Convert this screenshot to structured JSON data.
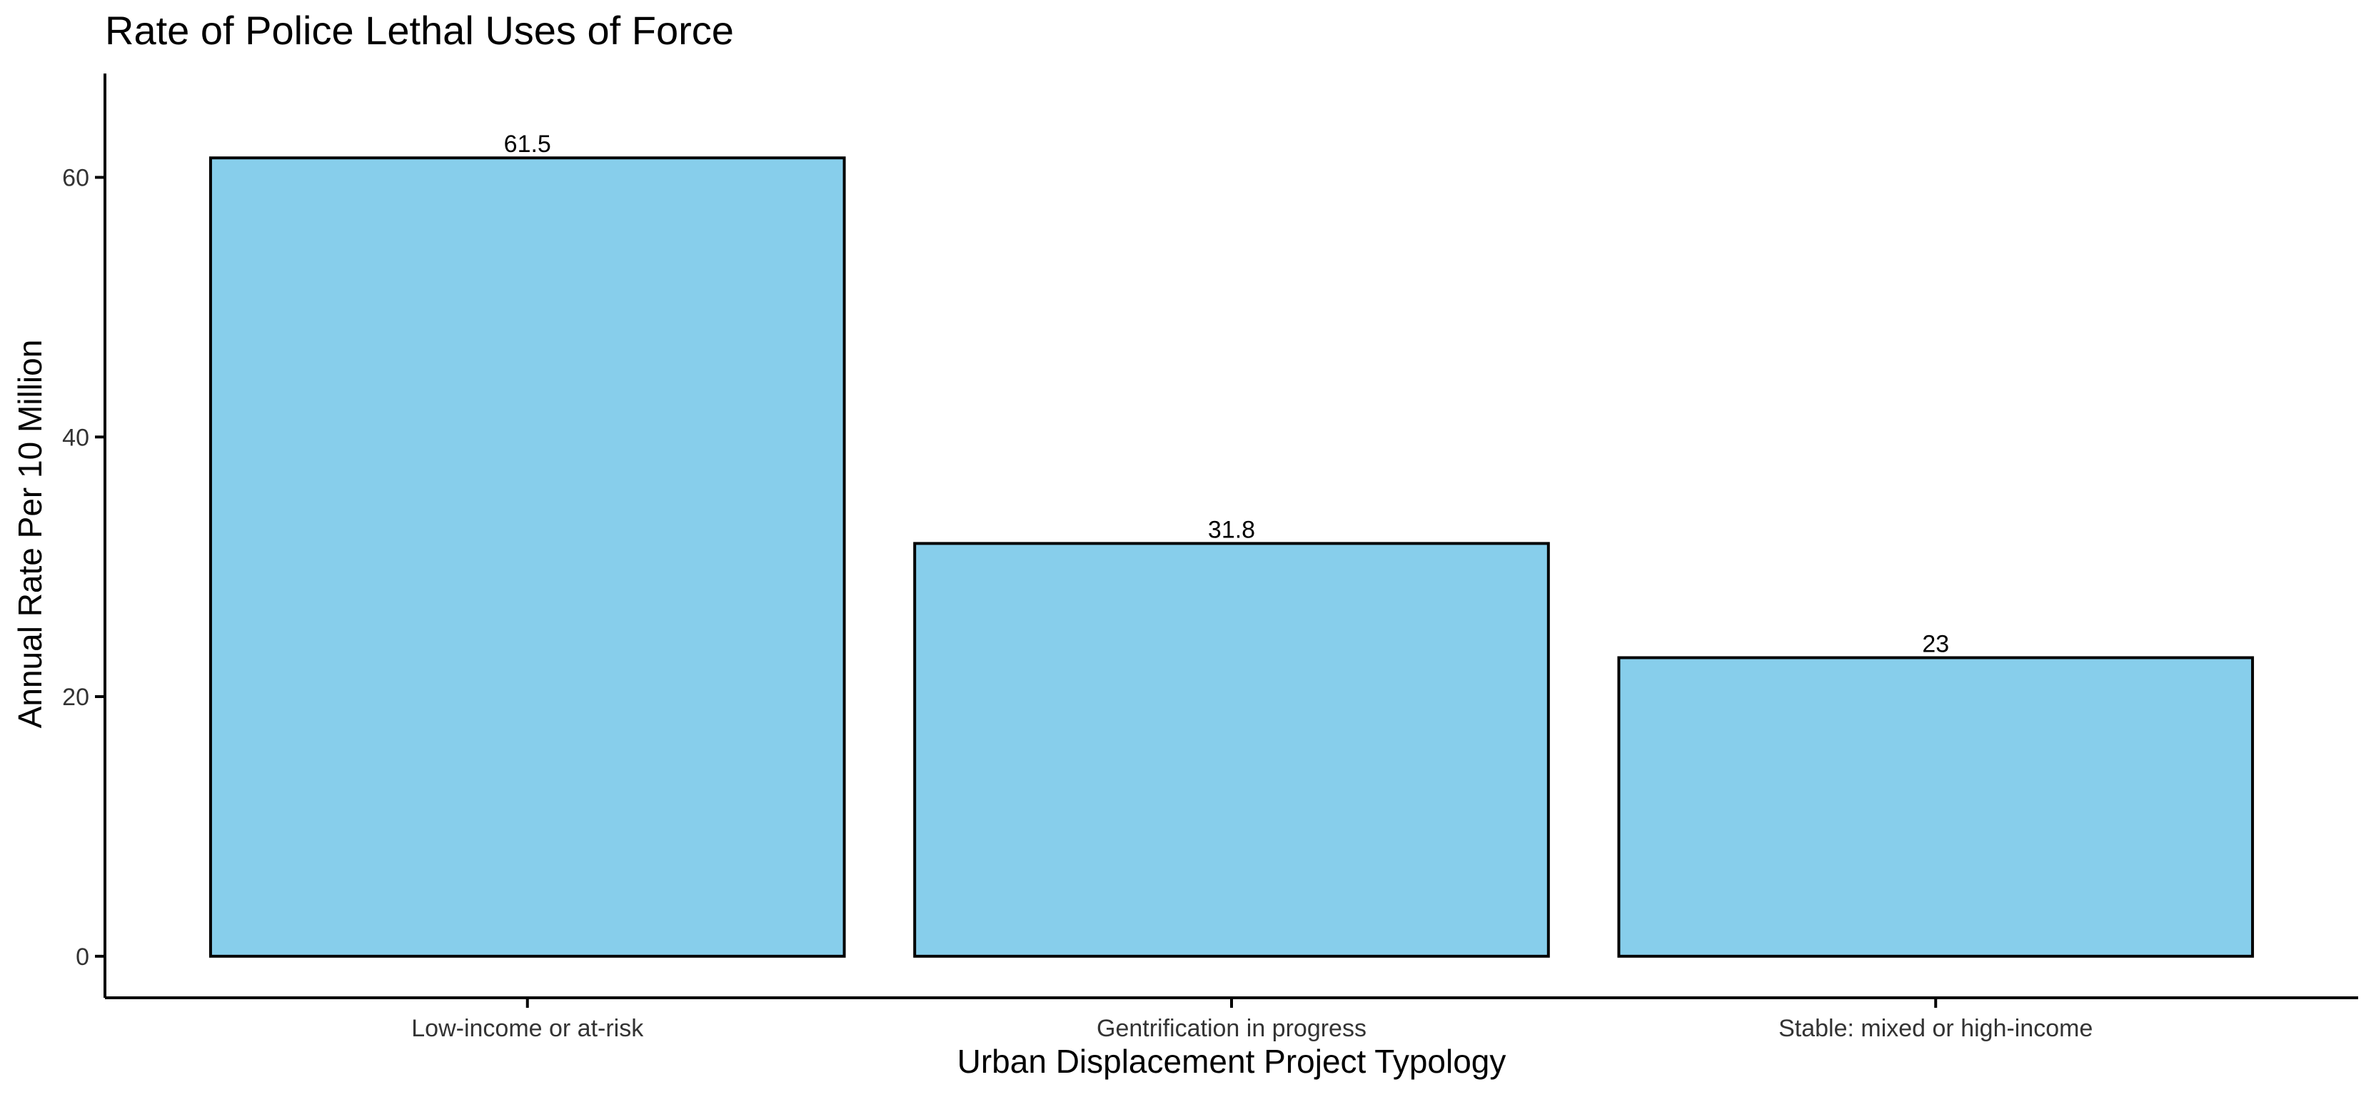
{
  "chart_data": {
    "type": "bar",
    "title": "Rate of Police Lethal Uses of Force",
    "xlabel": "Urban Displacement Project Typology",
    "ylabel": "Annual Rate Per 10 Million",
    "categories": [
      "Low-income or at-risk",
      "Gentrification in progress",
      "Stable: mixed or high-income"
    ],
    "values": [
      61.5,
      31.8,
      23
    ],
    "data_labels": [
      "61.5",
      "31.8",
      "23"
    ],
    "ylim": [
      -3.2,
      68
    ],
    "yticks": [
      0,
      20,
      40,
      60
    ],
    "ytick_labels": [
      "0",
      "20",
      "40",
      "60"
    ],
    "grid": false,
    "legend": "none",
    "colors": {
      "bar_fill": "#87CEEB",
      "bar_stroke": "#000000",
      "axis": "#000000",
      "text": "#000000",
      "tick_text": "#333333"
    }
  }
}
